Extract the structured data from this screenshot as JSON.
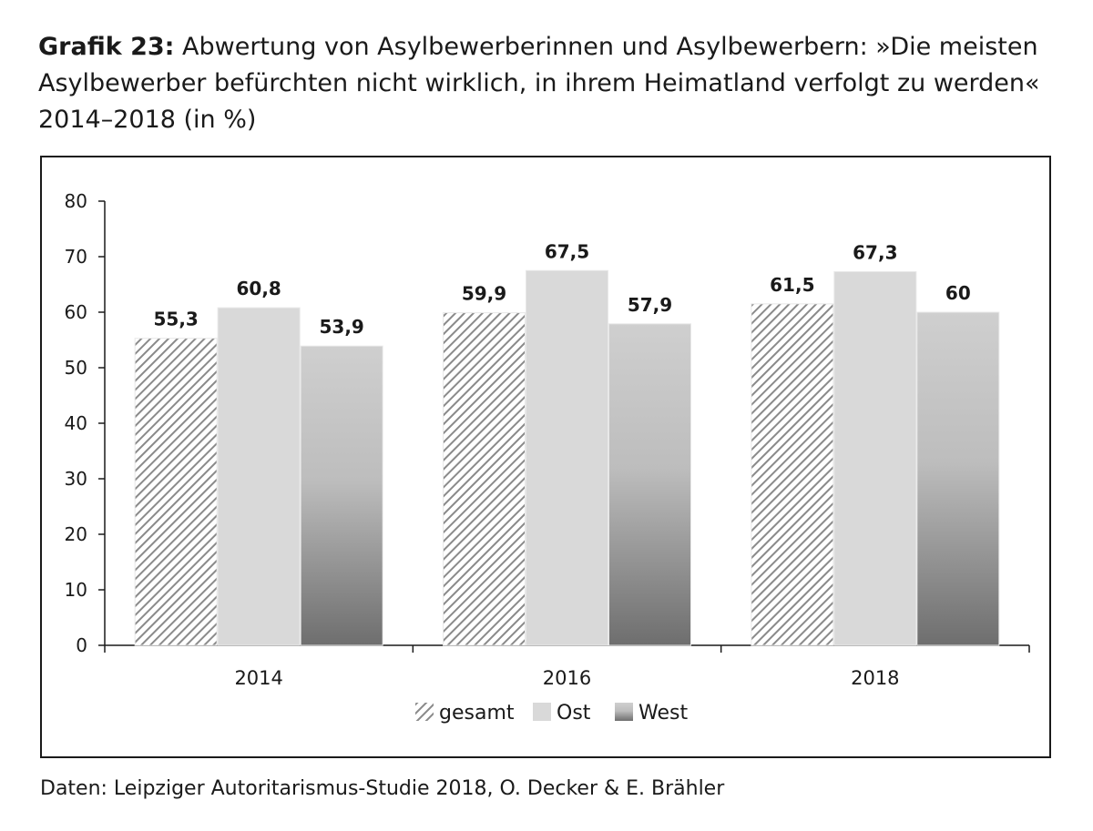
{
  "title": {
    "prefix": "Grafik 23:",
    "text": "Abwertung von Asylbewerberinnen und Asylbewerbern: »Die meisten Asylbewerber befürchten nicht wirklich, in ihrem Heimatland verfolgt zu werden« 2014–2018 (in %)"
  },
  "source": "Daten: Leipziger Autoritarismus-Studie 2018, O. Decker & E. Brähler",
  "colors": {
    "gesamt_hatch": "#8a8a8a",
    "ost": "#d9d9d9",
    "west_top": "#cfcfcf",
    "west_bottom": "#6e6e6e",
    "axis": "#1a1a1a"
  },
  "chart_data": {
    "type": "bar",
    "title": "Abwertung von Asylbewerberinnen und Asylbewerbern: »Die meisten Asylbewerber befürchten nicht wirklich, in ihrem Heimatland verfolgt zu werden« 2014–2018 (in %)",
    "categories": [
      "2014",
      "2016",
      "2018"
    ],
    "series": [
      {
        "name": "gesamt",
        "values": [
          55.3,
          59.9,
          61.5
        ],
        "labels": [
          "55,3",
          "59,9",
          "61,5"
        ]
      },
      {
        "name": "Ost",
        "values": [
          60.8,
          67.5,
          67.3
        ],
        "labels": [
          "60,8",
          "67,5",
          "67,3"
        ]
      },
      {
        "name": "West",
        "values": [
          53.9,
          57.9,
          60
        ],
        "labels": [
          "53,9",
          "57,9",
          "60"
        ]
      }
    ],
    "ylim": [
      0,
      80
    ],
    "yticks": [
      0,
      10,
      20,
      30,
      40,
      50,
      60,
      70,
      80
    ],
    "xlabel": "",
    "ylabel": "",
    "grid": false,
    "legend_position": "bottom"
  }
}
